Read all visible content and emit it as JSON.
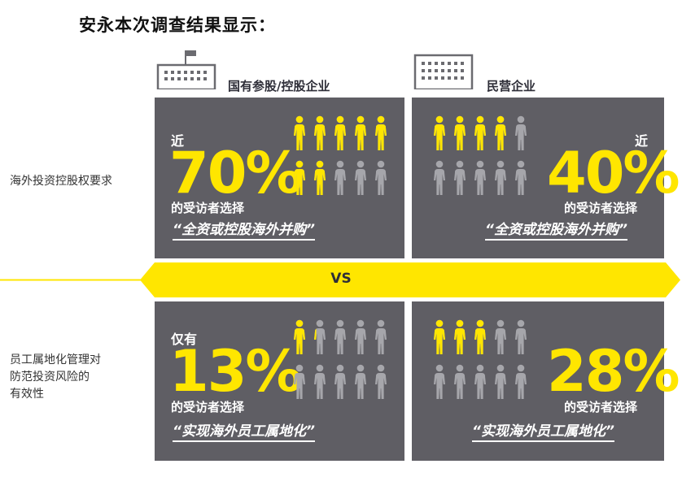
{
  "title": "安永本次调查结果显示：",
  "columns": {
    "left_header": "国有参股/控股企业",
    "right_header": "民营企业"
  },
  "rows": {
    "row1_label": "海外投资控股权要求",
    "row2_label_lines": [
      "员工属地化管理对",
      "防范投资风险的",
      "有效性"
    ]
  },
  "vs_label": "VS",
  "panels": {
    "p1": {
      "prefix": "近",
      "value": "70%",
      "selected_text": "的受访者选择",
      "quote": "“全资或控股海外并购”",
      "people_highlighted": 7,
      "people_total": 10
    },
    "p2": {
      "prefix": "近",
      "value": "40%",
      "selected_text": "的受访者选择",
      "quote": "“全资或控股海外并购”",
      "people_highlighted": 4,
      "people_total": 10
    },
    "p3": {
      "prefix": "仅有",
      "value": "13%",
      "selected_text": "的受访者选择",
      "quote": "“实现海外员工属地化”",
      "people_highlighted": 1.3,
      "people_total": 10
    },
    "p4": {
      "prefix": "",
      "value": "28%",
      "selected_text": "的受访者选择",
      "quote": "“实现海外员工属地化”",
      "people_highlighted": 2.8,
      "people_total": 10
    }
  },
  "colors": {
    "accent_yellow": "#ffe600",
    "panel_gray": "#5f5e64",
    "person_gray": "#a6a6ab",
    "text_dark": "#2e2e38"
  },
  "icons": {
    "left_building": "government-building-icon",
    "right_building": "office-building-icon",
    "person": "person-icon"
  }
}
